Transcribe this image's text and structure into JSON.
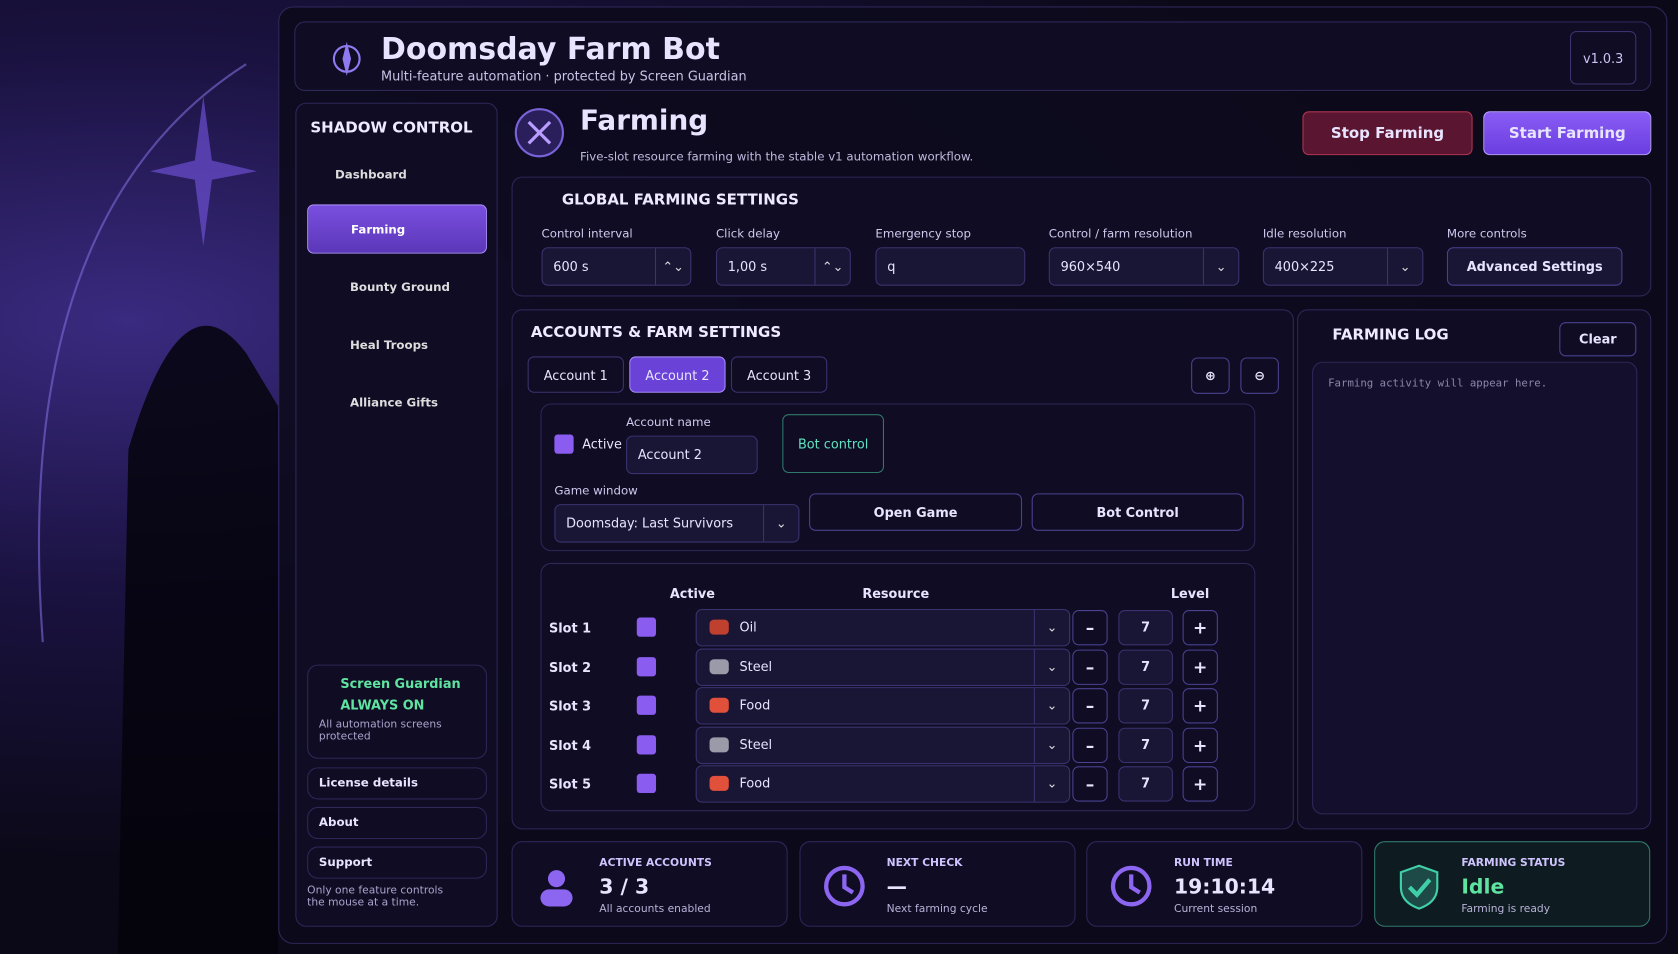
{
  "header": {
    "title": "Doomsday Farm Bot",
    "subtitle": "Multi-feature automation · protected by Screen Guardian",
    "version": "v1.0.3"
  },
  "sidebar": {
    "heading": "SHADOW CONTROL",
    "nav": [
      "Dashboard",
      "Farming",
      "Bounty Ground",
      "Heal Troops",
      "Alliance Gifts"
    ],
    "guardian": {
      "title": "Screen Guardian",
      "status": "ALWAYS ON",
      "note": "All automation screens protected"
    },
    "links": [
      "License details",
      "About",
      "Support"
    ],
    "footer_note": "Only one feature controls the mouse at a time."
  },
  "page": {
    "title": "Farming",
    "description": "Five-slot resource farming with the stable v1 automation workflow.",
    "stop_button": "Stop Farming",
    "start_button": "Start Farming"
  },
  "global_settings": {
    "title": "GLOBAL FARMING SETTINGS",
    "fields": [
      {
        "label": "Control interval",
        "value": "600 s"
      },
      {
        "label": "Click delay",
        "value": "1,00 s"
      },
      {
        "label": "Emergency stop",
        "value": "q"
      },
      {
        "label": "Control / farm resolution",
        "value": "960×540"
      },
      {
        "label": "Idle resolution",
        "value": "400×225"
      },
      {
        "label": "More controls",
        "value": "Advanced Settings"
      }
    ]
  },
  "accounts": {
    "title": "ACCOUNTS & FARM SETTINGS",
    "tabs": [
      "Account 1",
      "Account 2",
      "Account 3"
    ],
    "active_label": "Active",
    "account_name_label": "Account name",
    "account_name_value": "Account 2",
    "bot_control_tab": "Bot control",
    "game_window_label": "Game window",
    "game_window_value": "Doomsday: Last Survivors",
    "open_game": "Open Game",
    "bot_control_button": "Bot Control",
    "table": {
      "headers": [
        "Active",
        "Resource",
        "Level"
      ],
      "rows": [
        {
          "slot": "Slot 1",
          "resource": "Oil",
          "level": "7"
        },
        {
          "slot": "Slot 2",
          "resource": "Steel",
          "level": "7"
        },
        {
          "slot": "Slot 3",
          "resource": "Food",
          "level": "7"
        },
        {
          "slot": "Slot 4",
          "resource": "Steel",
          "level": "7"
        },
        {
          "slot": "Slot 5",
          "resource": "Food",
          "level": "7"
        }
      ]
    }
  },
  "log": {
    "title": "FARMING LOG",
    "clear": "Clear",
    "placeholder": "Farming activity will appear here."
  },
  "stats": [
    {
      "label": "ACTIVE ACCOUNTS",
      "value": "3 / 3",
      "note": "All accounts enabled"
    },
    {
      "label": "NEXT CHECK",
      "value": "—",
      "note": "Next farming cycle"
    },
    {
      "label": "RUN TIME",
      "value": "19:10:14",
      "note": "Current session"
    },
    {
      "label": "FARMING STATUS",
      "value": "Idle",
      "note": "Farming is ready"
    }
  ]
}
